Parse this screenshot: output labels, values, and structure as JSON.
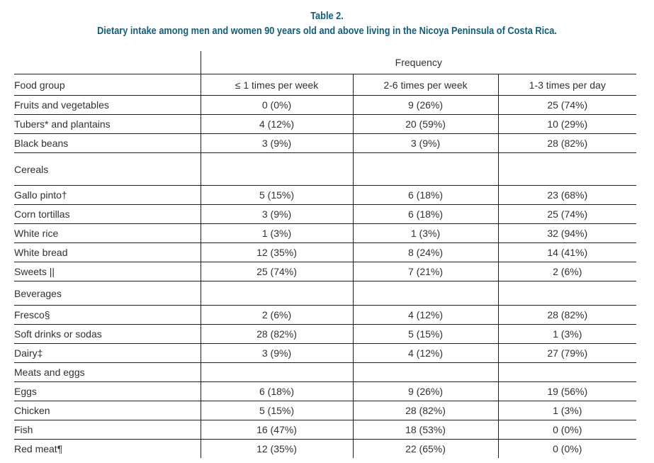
{
  "title": {
    "label": "Table 2.",
    "caption": "Dietary intake among men and women 90 years old and above living in the Nicoya Peninsula of Costa Rica."
  },
  "table": {
    "group_header": "Frequency",
    "columns": [
      "Food group",
      "≤ 1 times per week",
      "2-6 times per week",
      "1-3 times per day"
    ],
    "rows": [
      {
        "label": "Fruits and vegetables",
        "values": [
          "0 (0%)",
          "9 (26%)",
          "25 (74%)"
        ]
      },
      {
        "label": "Tubers* and plantains",
        "values": [
          "4 (12%)",
          "20 (59%)",
          "10 (29%)"
        ]
      },
      {
        "label": "Black beans",
        "values": [
          "3 (9%)",
          "3 (9%)",
          "28 (82%)"
        ]
      },
      {
        "label": "Cereals",
        "values": [
          "",
          "",
          ""
        ]
      },
      {
        "label": "Gallo pinto†",
        "values": [
          "5 (15%)",
          "6 (18%)",
          "23 (68%)"
        ]
      },
      {
        "label": "Corn tortillas",
        "values": [
          "3 (9%)",
          "6 (18%)",
          "25 (74%)"
        ]
      },
      {
        "label": "White rice",
        "values": [
          "1 (3%)",
          "1 (3%)",
          "32 (94%)"
        ]
      },
      {
        "label": "White bread",
        "values": [
          "12 (35%)",
          "8 (24%)",
          "14 (41%)"
        ]
      },
      {
        "label": "Sweets ||",
        "values": [
          "25 (74%)",
          "7 (21%)",
          "2 (6%)"
        ]
      },
      {
        "label": "Beverages",
        "values": [
          "",
          "",
          ""
        ]
      },
      {
        "label": "Fresco§",
        "values": [
          "2 (6%)",
          "4 (12%)",
          "28 (82%)"
        ]
      },
      {
        "label": "Soft drinks or sodas",
        "values": [
          "28 (82%)",
          "5 (15%)",
          "1 (3%)"
        ]
      },
      {
        "label": "Dairy‡",
        "values": [
          "3 (9%)",
          "4 (12%)",
          "27 (79%)"
        ]
      },
      {
        "label": "Meats and eggs",
        "values": [
          "",
          "",
          ""
        ]
      },
      {
        "label": "Eggs",
        "values": [
          "6 (18%)",
          "9 (26%)",
          "19 (56%)"
        ]
      },
      {
        "label": "Chicken",
        "values": [
          "5 (15%)",
          "28 (82%)",
          "1 (3%)"
        ]
      },
      {
        "label": "Fish",
        "values": [
          "16 (47%)",
          "18 (53%)",
          "0 (0%)"
        ]
      },
      {
        "label": "Red meat¶",
        "values": [
          "12 (35%)",
          "22 (65%)",
          "0 (0%)"
        ]
      }
    ]
  },
  "colors": {
    "title_text": "#115e7e",
    "border": "#1d1d1d",
    "body_text": "#303030",
    "background": "#ffffff"
  }
}
